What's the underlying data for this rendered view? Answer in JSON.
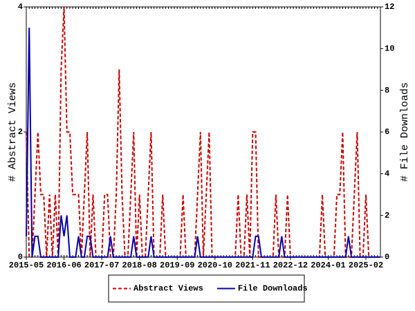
{
  "chart_data": {
    "type": "line",
    "categories": [
      "2015-05",
      null,
      null,
      null,
      null,
      null,
      null,
      null,
      null,
      null,
      null,
      null,
      null,
      "2016-06",
      null,
      null,
      null,
      null,
      null,
      null,
      null,
      null,
      null,
      null,
      null,
      null,
      "2017-07",
      null,
      null,
      null,
      null,
      null,
      null,
      null,
      null,
      null,
      null,
      null,
      null,
      "2018-08",
      null,
      null,
      null,
      null,
      null,
      null,
      null,
      null,
      null,
      null,
      null,
      null,
      "2019-09",
      null,
      null,
      null,
      null,
      null,
      null,
      null,
      null,
      null,
      null,
      null,
      null,
      "2020-10",
      null,
      null,
      null,
      null,
      null,
      null,
      null,
      null,
      null,
      null,
      null,
      null,
      "2021-11",
      null,
      null,
      null,
      null,
      null,
      null,
      null,
      null,
      null,
      null,
      null,
      null,
      "2022-12",
      null,
      null,
      null,
      null,
      null,
      null,
      null,
      null,
      null,
      null,
      null,
      null,
      "2024-01",
      null,
      null,
      null,
      null,
      null,
      null,
      null,
      null,
      null,
      null,
      null,
      null,
      "2025-02",
      null,
      null,
      null,
      null,
      null
    ],
    "series": [
      {
        "name": "Abstract Views",
        "color": "#cc0000",
        "dash": true,
        "values": [
          2,
          0,
          0,
          1,
          2,
          1,
          1,
          0,
          1,
          0,
          1,
          0,
          3,
          4,
          2,
          2,
          1,
          1,
          1,
          0,
          1,
          2,
          0,
          1,
          0,
          0,
          0,
          1,
          1,
          0,
          0,
          1,
          3,
          1,
          0,
          0,
          1,
          2,
          0,
          1,
          0,
          0,
          1,
          2,
          0,
          0,
          0,
          1,
          0,
          0,
          0,
          0,
          0,
          0,
          1,
          0,
          0,
          0,
          0,
          1,
          2,
          0,
          1,
          2,
          0,
          0,
          0,
          0,
          0,
          0,
          0,
          0,
          0,
          1,
          0,
          0,
          1,
          0,
          2,
          2,
          0,
          0,
          0,
          0,
          0,
          0,
          1,
          0,
          0,
          0,
          1,
          0,
          0,
          0,
          0,
          0,
          0,
          0,
          0,
          0,
          0,
          0,
          1,
          0,
          0,
          0,
          0,
          1,
          1,
          2,
          0,
          0,
          0,
          1,
          2,
          0,
          0,
          1,
          0,
          0,
          0,
          0,
          0
        ]
      },
      {
        "name": "File Downloads",
        "color": "#0000aa",
        "dash": false,
        "axis": "y2",
        "values": [
          1,
          11,
          0,
          1,
          1,
          0,
          0,
          0,
          0,
          0,
          0,
          0,
          2,
          1,
          2,
          0,
          0,
          0,
          1,
          0,
          0,
          1,
          1,
          0,
          0,
          0,
          0,
          0,
          0,
          1,
          0,
          0,
          0,
          0,
          0,
          0,
          0,
          1,
          0,
          0,
          0,
          0,
          0,
          1,
          0,
          0,
          0,
          0,
          0,
          0,
          0,
          0,
          0,
          0,
          0,
          0,
          0,
          0,
          0,
          1,
          0,
          0,
          0,
          0,
          0,
          0,
          0,
          0,
          0,
          0,
          0,
          0,
          0,
          0,
          0,
          0,
          0,
          0,
          0,
          1,
          1,
          0,
          0,
          0,
          0,
          0,
          0,
          0,
          1,
          0,
          0,
          0,
          0,
          0,
          0,
          0,
          0,
          0,
          0,
          0,
          0,
          0,
          0,
          0,
          0,
          0,
          0,
          0,
          0,
          0,
          0,
          1,
          0,
          0,
          0,
          0,
          0,
          0,
          0,
          0,
          0,
          0,
          0
        ]
      }
    ],
    "ylabel": "# Abstract Views",
    "y2label": "# File Downloads",
    "ylim": [
      0,
      4
    ],
    "yticks": [
      0,
      2,
      4
    ],
    "y2lim": [
      0,
      12
    ],
    "y2ticks": [
      0,
      2,
      4,
      6,
      8,
      10,
      12
    ],
    "legend": "bottom"
  }
}
